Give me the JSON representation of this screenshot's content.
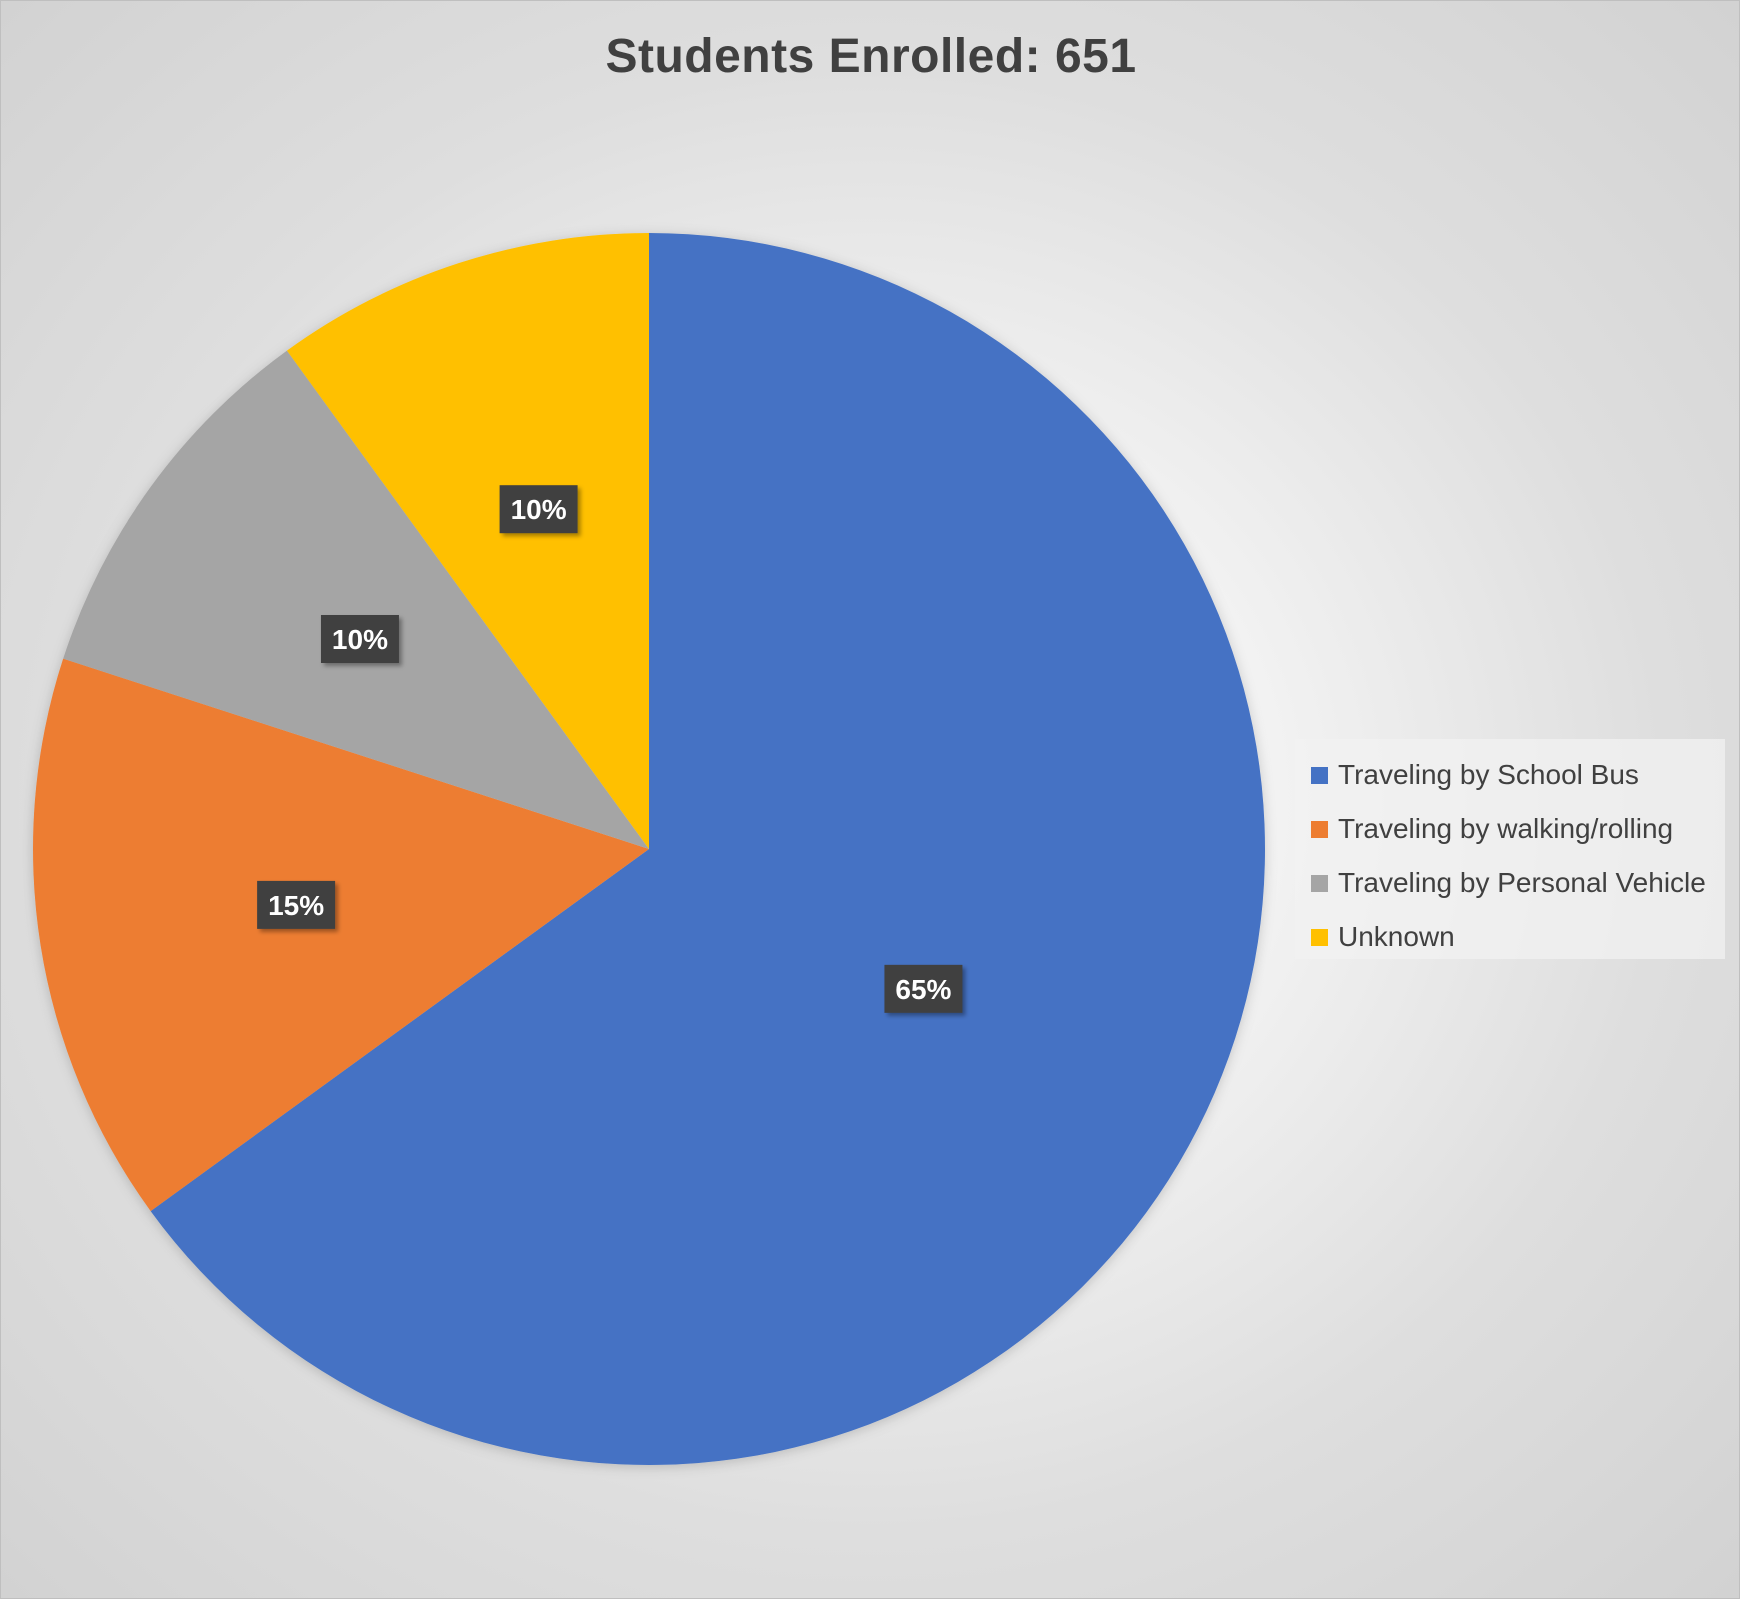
{
  "chart_data": {
    "type": "pie",
    "title": "Students Enrolled: 651",
    "start_angle_deg": 0,
    "direction": "clockwise",
    "slices": [
      {
        "label": "Traveling by School Bus",
        "value": 65,
        "data_label": "65%",
        "color": "#4472C4"
      },
      {
        "label": "Traveling by walking/rolling",
        "value": 15,
        "data_label": "15%",
        "color": "#ED7D31"
      },
      {
        "label": "Traveling by Personal Vehicle",
        "value": 10,
        "data_label": "10%",
        "color": "#A5A5A5"
      },
      {
        "label": "Unknown",
        "value": 10,
        "data_label": "10%",
        "color": "#FFC000"
      }
    ],
    "legend_position": "right",
    "data_label_style": "dark boxes with white bold text"
  }
}
